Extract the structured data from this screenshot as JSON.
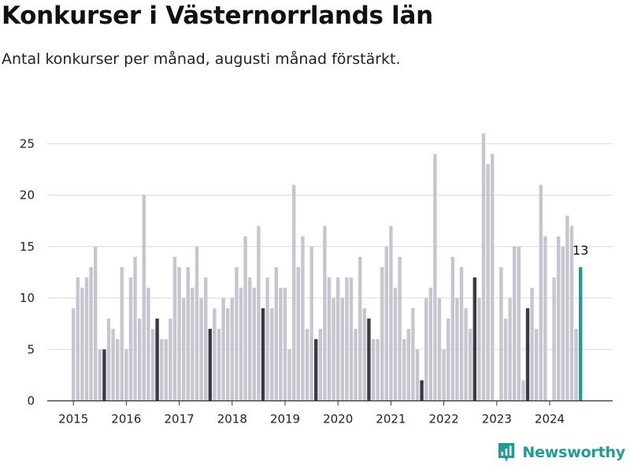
{
  "header": {
    "title": "Konkurser i Västernorrlands län",
    "subtitle": "Antal konkurser per månad, augusti månad förstärkt."
  },
  "brand": {
    "name": "Newsworthy",
    "icon": "newsworthy-logo-icon",
    "color": "#1f9c96"
  },
  "colors": {
    "bar": "#c6c5d0",
    "highlight_august": "#3a3a46",
    "latest": "#1f9c96",
    "grid": "#d9d9d9",
    "axis": "#333333"
  },
  "chart_data": {
    "type": "bar",
    "title": "Konkurser i Västernorrlands län",
    "subtitle": "Antal konkurser per månad, augusti månad förstärkt.",
    "xlabel": "",
    "ylabel": "",
    "ylim": [
      0,
      27
    ],
    "yticks": [
      0,
      5,
      10,
      15,
      20,
      25
    ],
    "grid": true,
    "x_tick_labels": [
      "2015",
      "2016",
      "2017",
      "2018",
      "2019",
      "2020",
      "2021",
      "2022",
      "2023",
      "2024"
    ],
    "start_month": "2015-01",
    "emphasis_rule": "augusti",
    "values": [
      9,
      12,
      11,
      12,
      13,
      15,
      5,
      5,
      8,
      7,
      6,
      13,
      5,
      12,
      14,
      8,
      20,
      11,
      7,
      8,
      6,
      6,
      8,
      14,
      13,
      10,
      13,
      11,
      15,
      10,
      12,
      7,
      9,
      7,
      10,
      9,
      10,
      13,
      11,
      16,
      12,
      11,
      17,
      9,
      12,
      9,
      13,
      11,
      11,
      5,
      21,
      13,
      16,
      7,
      15,
      6,
      7,
      17,
      12,
      10,
      12,
      10,
      12,
      12,
      7,
      14,
      9,
      8,
      6,
      6,
      13,
      15,
      17,
      11,
      14,
      6,
      7,
      9,
      5,
      2,
      10,
      11,
      24,
      10,
      5,
      8,
      14,
      10,
      13,
      9,
      7,
      12,
      10,
      26,
      23,
      24,
      0,
      13,
      8,
      10,
      15,
      15,
      2,
      9,
      11,
      7,
      21,
      16,
      0,
      12,
      16,
      15,
      18,
      17,
      7,
      13
    ],
    "annotation": {
      "label": "13",
      "value": 13
    }
  }
}
